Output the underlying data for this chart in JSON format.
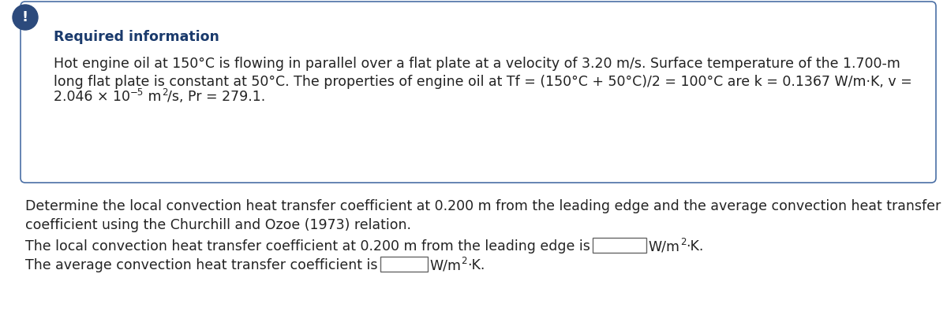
{
  "bg_color": "#ffffff",
  "box_border_color": "#4a6fa5",
  "box_bg_color": "#ffffff",
  "icon_bg_color": "#2c4a7c",
  "icon_text": "!",
  "icon_text_color": "#ffffff",
  "required_info_title": "Required information",
  "required_info_title_color": "#1a3a6c",
  "body_text_color": "#222222",
  "line1": "Hot engine oil at 150°C is flowing in parallel over a flat plate at a velocity of 3.20 m/s. Surface temperature of the 1.700-m",
  "line2_part1": "long flat plate is constant at 50°C. The properties of engine oil at ",
  "line2_Tf_T": "T",
  "line2_Tf_f": "f",
  "line2_part2": " = (150°C + 50°C)/2 = 100°C are k = 0.1367 W/m·K, v =",
  "line3_base": "2.046 × 10",
  "line3_sup1": "−5",
  "line3_mid": " m",
  "line3_sup2": "2",
  "line3_end": "/s, Pr = 279.1.",
  "det_line1": "Determine the local convection heat transfer coefficient at 0.200 m from the leading edge and the average convection heat transfer",
  "det_line2": "coefficient using the Churchill and Ozoe (1973) relation.",
  "ans1_pre": "The local convection heat transfer coefficient at 0.200 m from the leading edge is",
  "ans1_unit_pre": "W/m",
  "ans1_unit_sup": "2",
  "ans1_unit_end": "·K.",
  "ans2_pre": "The average convection heat transfer coefficient is",
  "ans2_unit_pre": "W/m",
  "ans2_unit_sup": "2",
  "ans2_unit_end": "·K.",
  "font_size_body": 12.5,
  "font_size_title": 12.5,
  "font_size_sup": 8.5
}
